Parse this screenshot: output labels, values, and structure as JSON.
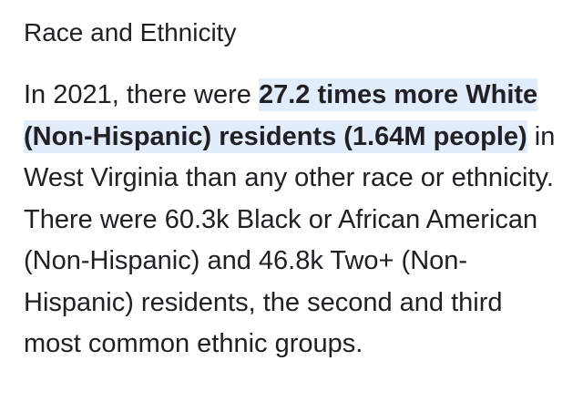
{
  "section": {
    "title": "Race and Ethnicity"
  },
  "paragraph": {
    "lead": "In 2021, there were ",
    "highlight": "27.2 times more White (Non-Hispanic) residents (1.64M people)",
    "rest": " in West Virginia than any other race or ethnicity. There were 60.3k Black or African American (Non-Hispanic) and 46.8k Two+ (Non-Hispanic) residents, the second and third most common ethnic groups."
  },
  "colors": {
    "text": "#202124",
    "highlight_bg": "#e2ecfb"
  }
}
